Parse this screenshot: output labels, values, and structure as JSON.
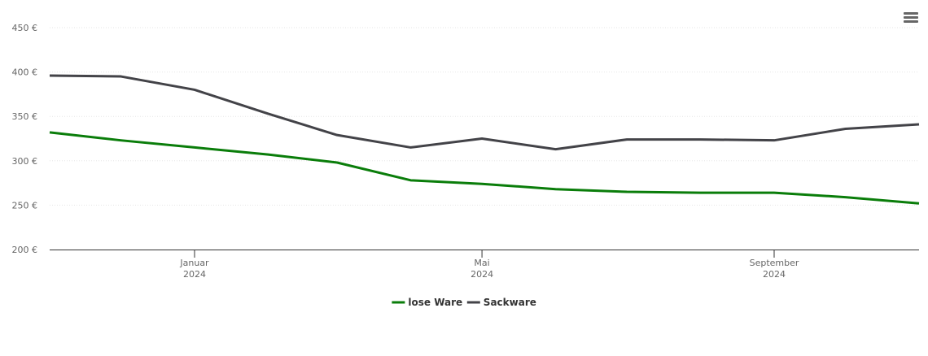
{
  "chart_data": {
    "type": "line",
    "x": [
      "2023-11",
      "2023-12",
      "2024-01",
      "2024-02",
      "2024-03",
      "2024-04",
      "2024-05",
      "2024-06",
      "2024-07",
      "2024-08",
      "2024-09",
      "2024-10",
      "2024-11"
    ],
    "series": [
      {
        "name": "lose Ware",
        "color": "#0a7d0a",
        "values": [
          332,
          323,
          315,
          307,
          298,
          278,
          274,
          268,
          265,
          264,
          264,
          259,
          252
        ]
      },
      {
        "name": "Sackware",
        "color": "#434348",
        "values": [
          396,
          395,
          380,
          353,
          329,
          315,
          325,
          313,
          324,
          324,
          323,
          336,
          341
        ]
      }
    ],
    "xlim": [
      "2023-11",
      "2024-11"
    ],
    "xticks": [
      {
        "value": "2024-01",
        "label": "Januar\n2024"
      },
      {
        "value": "2024-05",
        "label": "Mai\n2024"
      },
      {
        "value": "2024-09",
        "label": "September\n2024"
      }
    ],
    "ylim": [
      200,
      450
    ],
    "yticks": [
      {
        "value": 200,
        "label": "200 €"
      },
      {
        "value": 250,
        "label": "250 €"
      },
      {
        "value": 300,
        "label": "300 €"
      },
      {
        "value": 350,
        "label": "350 €"
      },
      {
        "value": 400,
        "label": "400 €"
      },
      {
        "value": 450,
        "label": "450 €"
      }
    ],
    "grid": true,
    "legend": "bottom"
  }
}
